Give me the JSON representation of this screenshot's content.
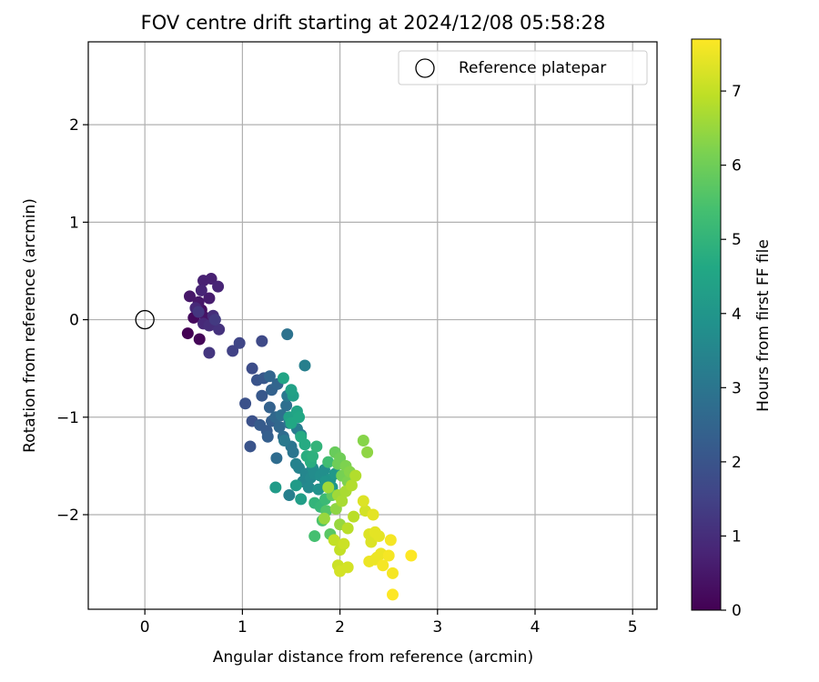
{
  "chart_data": {
    "type": "scatter",
    "title": "FOV centre drift starting at 2024/12/08 05:58:28",
    "xlabel": "Angular distance from reference (arcmin)",
    "ylabel": "Rotation from reference (arcmin)",
    "xlim": [
      -0.58,
      5.25
    ],
    "ylim": [
      -2.97,
      2.85
    ],
    "x_ticks": [
      0,
      1,
      2,
      3,
      4,
      5
    ],
    "y_ticks": [
      -2,
      -1,
      0,
      1,
      2
    ],
    "x_tick_labels": [
      "0",
      "1",
      "2",
      "3",
      "4",
      "5"
    ],
    "y_tick_labels": [
      "−2",
      "−1",
      "0",
      "1",
      "2"
    ],
    "grid": true,
    "legend": {
      "position": "top-right",
      "entries": [
        "Reference platepar"
      ]
    },
    "reference_point": {
      "x": 0,
      "y": 0
    },
    "colorbar": {
      "label": "Hours from first FF file",
      "range": [
        0,
        7.7
      ],
      "ticks": [
        0,
        1,
        2,
        3,
        4,
        5,
        6,
        7
      ],
      "tick_labels": [
        "0",
        "1",
        "2",
        "3",
        "4",
        "5",
        "6",
        "7"
      ],
      "colormap": "viridis"
    },
    "points": [
      [
        0.44,
        -0.14,
        0.0
      ],
      [
        0.56,
        -0.2,
        0.1
      ],
      [
        0.5,
        0.02,
        0.2
      ],
      [
        0.58,
        0.1,
        0.3
      ],
      [
        0.62,
        0.02,
        0.4
      ],
      [
        0.46,
        0.24,
        0.5
      ],
      [
        0.55,
        0.18,
        0.5
      ],
      [
        0.66,
        0.22,
        0.6
      ],
      [
        0.6,
        0.4,
        0.7
      ],
      [
        0.68,
        0.42,
        0.7
      ],
      [
        0.75,
        0.34,
        0.8
      ],
      [
        0.58,
        0.3,
        0.8
      ],
      [
        0.52,
        0.12,
        0.9
      ],
      [
        0.6,
        -0.04,
        0.9
      ],
      [
        0.7,
        0.04,
        1.0
      ],
      [
        0.66,
        -0.06,
        1.0
      ],
      [
        0.76,
        -0.1,
        1.1
      ],
      [
        0.66,
        -0.34,
        1.2
      ],
      [
        0.55,
        0.08,
        1.2
      ],
      [
        0.72,
        0.0,
        1.3
      ],
      [
        0.9,
        -0.32,
        1.5
      ],
      [
        0.97,
        -0.24,
        1.6
      ],
      [
        1.2,
        -0.22,
        1.7
      ],
      [
        1.1,
        -0.5,
        1.8
      ],
      [
        1.03,
        -0.86,
        1.9
      ],
      [
        1.1,
        -1.04,
        1.9
      ],
      [
        1.08,
        -1.3,
        2.0
      ],
      [
        1.15,
        -0.62,
        2.0
      ],
      [
        1.22,
        -0.6,
        2.1
      ],
      [
        1.2,
        -0.78,
        2.1
      ],
      [
        1.18,
        -1.08,
        2.2
      ],
      [
        1.25,
        -1.14,
        2.2
      ],
      [
        1.26,
        -1.2,
        2.3
      ],
      [
        1.3,
        -1.04,
        2.3
      ],
      [
        1.28,
        -0.9,
        2.4
      ],
      [
        1.3,
        -0.72,
        2.4
      ],
      [
        1.36,
        -0.66,
        2.5
      ],
      [
        1.28,
        -0.58,
        2.5
      ],
      [
        1.34,
        -1.0,
        2.6
      ],
      [
        1.38,
        -1.1,
        2.6
      ],
      [
        1.42,
        -1.2,
        2.7
      ],
      [
        1.35,
        -1.42,
        2.7
      ],
      [
        1.4,
        -0.98,
        2.8
      ],
      [
        1.45,
        -0.88,
        2.8
      ],
      [
        1.46,
        -0.15,
        2.9
      ],
      [
        1.48,
        -1.06,
        2.9
      ],
      [
        1.5,
        -1.3,
        3.0
      ],
      [
        1.52,
        -1.36,
        3.0
      ],
      [
        1.46,
        -0.78,
        3.1
      ],
      [
        1.43,
        -1.24,
        3.1
      ],
      [
        1.56,
        -1.12,
        3.2
      ],
      [
        1.6,
        -1.18,
        3.2
      ],
      [
        1.64,
        -0.47,
        3.3
      ],
      [
        1.48,
        -1.8,
        3.3
      ],
      [
        1.55,
        -1.48,
        3.4
      ],
      [
        1.58,
        -1.52,
        3.4
      ],
      [
        1.62,
        -1.66,
        3.5
      ],
      [
        1.65,
        -1.58,
        3.5
      ],
      [
        1.7,
        -1.62,
        3.6
      ],
      [
        1.68,
        -1.72,
        3.6
      ],
      [
        1.72,
        -1.52,
        3.7
      ],
      [
        1.74,
        -1.58,
        3.7
      ],
      [
        1.8,
        -1.6,
        3.8
      ],
      [
        1.84,
        -1.54,
        3.8
      ],
      [
        1.78,
        -1.74,
        3.9
      ],
      [
        1.86,
        -1.7,
        3.9
      ],
      [
        1.9,
        -1.64,
        4.0
      ],
      [
        1.85,
        -1.66,
        4.0
      ],
      [
        1.95,
        -1.58,
        4.1
      ],
      [
        1.92,
        -1.72,
        4.1
      ],
      [
        1.34,
        -1.72,
        4.2
      ],
      [
        1.55,
        -1.7,
        4.2
      ],
      [
        1.6,
        -1.84,
        4.3
      ],
      [
        1.52,
        -0.78,
        4.3
      ],
      [
        1.5,
        -0.72,
        4.4
      ],
      [
        1.48,
        -1.0,
        4.4
      ],
      [
        1.56,
        -0.94,
        4.5
      ],
      [
        1.42,
        -0.6,
        4.5
      ],
      [
        1.5,
        -1.06,
        4.6
      ],
      [
        1.58,
        -1.0,
        4.6
      ],
      [
        1.6,
        -1.2,
        4.7
      ],
      [
        1.64,
        -1.28,
        4.7
      ],
      [
        1.66,
        -1.4,
        4.8
      ],
      [
        1.7,
        -1.46,
        4.8
      ],
      [
        1.72,
        -1.4,
        4.9
      ],
      [
        1.76,
        -1.3,
        5.0
      ],
      [
        1.74,
        -1.88,
        5.0
      ],
      [
        1.8,
        -1.92,
        5.1
      ],
      [
        1.85,
        -1.84,
        5.2
      ],
      [
        1.88,
        -1.46,
        5.3
      ],
      [
        1.74,
        -2.22,
        5.4
      ],
      [
        1.82,
        -2.06,
        5.5
      ],
      [
        1.86,
        -1.96,
        5.6
      ],
      [
        1.9,
        -2.2,
        5.7
      ],
      [
        1.92,
        -1.8,
        5.8
      ],
      [
        1.95,
        -1.36,
        5.9
      ],
      [
        1.98,
        -1.48,
        6.0
      ],
      [
        2.0,
        -1.42,
        6.0
      ],
      [
        2.02,
        -1.6,
        6.1
      ],
      [
        2.06,
        -1.5,
        6.2
      ],
      [
        2.08,
        -1.66,
        6.2
      ],
      [
        2.1,
        -1.56,
        6.3
      ],
      [
        2.24,
        -1.24,
        6.3
      ],
      [
        2.28,
        -1.36,
        6.4
      ],
      [
        1.96,
        -1.94,
        6.4
      ],
      [
        2.0,
        -2.1,
        6.5
      ],
      [
        1.84,
        -2.04,
        6.5
      ],
      [
        1.88,
        -1.72,
        6.6
      ],
      [
        1.98,
        -1.8,
        6.6
      ],
      [
        2.02,
        -1.86,
        6.7
      ],
      [
        2.06,
        -1.76,
        6.7
      ],
      [
        2.12,
        -1.7,
        6.8
      ],
      [
        2.16,
        -1.6,
        6.8
      ],
      [
        2.08,
        -2.14,
        6.9
      ],
      [
        2.14,
        -2.02,
        6.9
      ],
      [
        1.94,
        -2.26,
        7.0
      ],
      [
        2.0,
        -2.36,
        7.0
      ],
      [
        2.04,
        -2.3,
        7.1
      ],
      [
        1.98,
        -2.52,
        7.1
      ],
      [
        2.08,
        -2.54,
        7.2
      ],
      [
        2.0,
        -2.58,
        7.2
      ],
      [
        2.26,
        -1.96,
        7.2
      ],
      [
        2.3,
        -2.2,
        7.3
      ],
      [
        2.24,
        -1.86,
        7.3
      ],
      [
        2.32,
        -2.28,
        7.3
      ],
      [
        2.34,
        -2.0,
        7.4
      ],
      [
        2.36,
        -2.18,
        7.4
      ],
      [
        2.4,
        -2.22,
        7.4
      ],
      [
        2.3,
        -2.48,
        7.5
      ],
      [
        2.36,
        -2.46,
        7.5
      ],
      [
        2.42,
        -2.4,
        7.5
      ],
      [
        2.38,
        -2.44,
        7.5
      ],
      [
        2.44,
        -2.52,
        7.6
      ],
      [
        2.5,
        -2.42,
        7.6
      ],
      [
        2.52,
        -2.26,
        7.6
      ],
      [
        2.54,
        -2.6,
        7.6
      ],
      [
        2.54,
        -2.82,
        7.7
      ],
      [
        2.73,
        -2.42,
        7.7
      ]
    ]
  }
}
